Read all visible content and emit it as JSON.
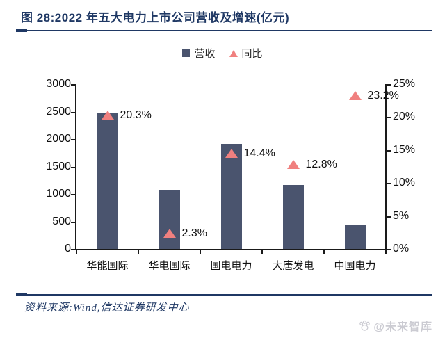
{
  "header": {
    "title": "图 28:2022 年五大电力上市公司营收及增速(亿元)"
  },
  "legend": [
    {
      "label": "营收",
      "marker": "square",
      "color": "#4A546E"
    },
    {
      "label": "同比",
      "marker": "triangle",
      "color": "#F0807F"
    }
  ],
  "chart_data": {
    "type": "bar",
    "title": "2022 年五大电力上市公司营收及增速(亿元)",
    "categories": [
      "华能国际",
      "华电国际",
      "国电电力",
      "大唐发电",
      "中国电力"
    ],
    "series": [
      {
        "name": "营收",
        "type": "bar",
        "axis": "left",
        "values": [
          2467,
          1071,
          1914,
          1168,
          437
        ]
      },
      {
        "name": "同比",
        "type": "scatter",
        "marker": "triangle",
        "axis": "right",
        "values": [
          20.3,
          2.3,
          14.4,
          12.8,
          23.2
        ],
        "labels": [
          "20.3%",
          "2.3%",
          "14.4%",
          "12.8%",
          "23.2%"
        ]
      }
    ],
    "left_axis": {
      "min": 0,
      "max": 3000,
      "step": 500,
      "ticks": [
        "0",
        "500",
        "1000",
        "1500",
        "2000",
        "2500",
        "3000"
      ]
    },
    "right_axis": {
      "min": 0,
      "max": 25,
      "step": 5,
      "ticks": [
        "0%",
        "5%",
        "10%",
        "15%",
        "20%",
        "25%"
      ]
    },
    "legend_position": "top",
    "grid": false,
    "colors": {
      "bar": "#4A546E",
      "triangle": "#F0807F",
      "accent_navy": "#1F3864",
      "watermark_gray": "#cbcbd2"
    }
  },
  "footer": {
    "source": "资料来源:Wind,信达证券研发中心",
    "watermark": "@未来智库"
  }
}
